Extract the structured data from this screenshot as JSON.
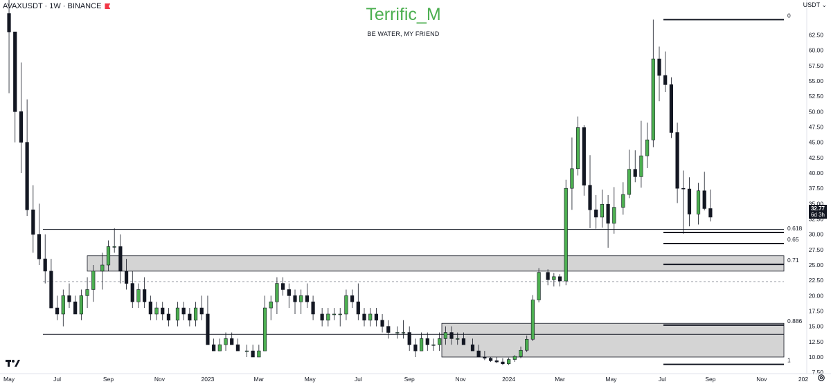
{
  "header": {
    "symbol": "AVAXUSDT · 1W · BINANCE",
    "brand": "Terrific_M",
    "tagline": "BE WATER, MY FRIEND",
    "currency": "USDT ⌄"
  },
  "price_badge": {
    "price": "32.77",
    "countdown": "6d 3h"
  },
  "colors": {
    "up": "#4caf50",
    "down": "#131722",
    "zone": "#d4d4d4",
    "background": "#ffffff"
  },
  "icons": {
    "flag": "red-flag-icon",
    "logo": "tradingview-logo-icon",
    "settings": "gear-icon"
  },
  "chart_data": {
    "type": "candlestick",
    "ylim": [
      7,
      66
    ],
    "y_ticks": [
      "7.50",
      "10.00",
      "12.50",
      "15.00",
      "17.50",
      "20.00",
      "22.50",
      "25.00",
      "27.50",
      "30.00",
      "32.50",
      "35.00",
      "37.50",
      "40.00",
      "42.50",
      "45.00",
      "47.50",
      "50.00",
      "52.50",
      "55.00",
      "57.50",
      "60.00",
      "62.50"
    ],
    "x_ticks": [
      "May",
      "Jul",
      "Sep",
      "Nov",
      "2023",
      "Mar",
      "May",
      "Jul",
      "Sep",
      "Nov",
      "2024",
      "Mar",
      "May",
      "Jul",
      "Sep",
      "Nov",
      "202"
    ],
    "candles": [
      [
        2022.34,
        66,
        72,
        53,
        63
      ],
      [
        2022.36,
        63,
        63,
        45,
        50
      ],
      [
        2022.38,
        50,
        58,
        40,
        45
      ],
      [
        2022.4,
        45,
        52,
        33,
        34
      ],
      [
        2022.42,
        34,
        38,
        27,
        30
      ],
      [
        2022.44,
        30,
        35,
        25,
        26
      ],
      [
        2022.46,
        26,
        30,
        22,
        24
      ],
      [
        2022.48,
        24,
        26,
        18,
        18
      ],
      [
        2022.5,
        18,
        20,
        16,
        17
      ],
      [
        2022.52,
        17,
        21,
        15,
        20
      ],
      [
        2022.54,
        20,
        22,
        18,
        19
      ],
      [
        2022.56,
        19,
        20,
        17,
        17
      ],
      [
        2022.58,
        17,
        21,
        16,
        20
      ],
      [
        2022.6,
        20,
        23,
        18,
        21
      ],
      [
        2022.62,
        21,
        25,
        19,
        24
      ],
      [
        2022.65,
        24,
        27,
        21,
        25
      ],
      [
        2022.67,
        25,
        29,
        24,
        28
      ],
      [
        2022.69,
        28,
        31,
        27,
        28
      ],
      [
        2022.71,
        28,
        30,
        22,
        24
      ],
      [
        2022.73,
        24,
        26,
        21,
        22
      ],
      [
        2022.75,
        22,
        24,
        18,
        19
      ],
      [
        2022.77,
        19,
        22,
        18,
        21
      ],
      [
        2022.79,
        21,
        23,
        18,
        19
      ],
      [
        2022.81,
        19,
        20,
        16,
        17
      ],
      [
        2022.83,
        17,
        19,
        16,
        18
      ],
      [
        2022.85,
        18,
        19,
        16,
        17
      ],
      [
        2022.87,
        17,
        18,
        15,
        16
      ],
      [
        2022.9,
        16,
        19,
        15,
        18
      ],
      [
        2022.92,
        18,
        19,
        16,
        17
      ],
      [
        2022.94,
        17,
        18,
        15,
        16
      ],
      [
        2022.96,
        16,
        19,
        15,
        18
      ],
      [
        2022.98,
        18,
        20,
        16,
        17
      ],
      [
        2023.0,
        17,
        20,
        12,
        12
      ],
      [
        2023.02,
        12,
        13,
        11,
        11
      ],
      [
        2023.04,
        11,
        13,
        11,
        12
      ],
      [
        2023.06,
        12,
        14,
        11,
        13
      ],
      [
        2023.08,
        13,
        14,
        12,
        12
      ],
      [
        2023.1,
        12,
        13,
        11,
        11
      ],
      [
        2023.13,
        11,
        12,
        10,
        11
      ],
      [
        2023.15,
        11,
        12,
        10,
        10
      ],
      [
        2023.17,
        10,
        12,
        10,
        11
      ],
      [
        2023.19,
        11,
        20,
        11,
        18
      ],
      [
        2023.21,
        18,
        20,
        16,
        19
      ],
      [
        2023.23,
        19,
        23,
        17,
        22
      ],
      [
        2023.25,
        22,
        23,
        20,
        21
      ],
      [
        2023.27,
        21,
        22,
        18,
        20
      ],
      [
        2023.29,
        20,
        21,
        17,
        19
      ],
      [
        2023.31,
        19,
        21,
        17,
        20
      ],
      [
        2023.33,
        20,
        22,
        18,
        19
      ],
      [
        2023.35,
        19,
        20,
        16,
        17
      ],
      [
        2023.38,
        17,
        18,
        15,
        16
      ],
      [
        2023.4,
        16,
        18,
        15,
        17
      ],
      [
        2023.42,
        17,
        18,
        16,
        17
      ],
      [
        2023.44,
        17,
        18,
        15,
        17
      ],
      [
        2023.46,
        17,
        21,
        16,
        20
      ],
      [
        2023.48,
        20,
        21,
        18,
        19
      ],
      [
        2023.5,
        19,
        22,
        16,
        17
      ],
      [
        2023.52,
        17,
        18,
        15,
        16
      ],
      [
        2023.54,
        16,
        18,
        15,
        17
      ],
      [
        2023.56,
        17,
        18,
        15,
        16
      ],
      [
        2023.58,
        16,
        17,
        14,
        15
      ],
      [
        2023.6,
        15,
        16,
        13,
        14
      ],
      [
        2023.63,
        14,
        15,
        13,
        14
      ],
      [
        2023.65,
        14,
        16,
        13,
        14
      ],
      [
        2023.67,
        14,
        15,
        11,
        12
      ],
      [
        2023.69,
        12,
        13,
        10,
        11
      ],
      [
        2023.71,
        11,
        14,
        11,
        13
      ],
      [
        2023.73,
        13,
        14,
        11,
        12
      ],
      [
        2023.75,
        12,
        13,
        11,
        12
      ],
      [
        2023.77,
        12,
        14,
        11,
        13
      ],
      [
        2023.79,
        13,
        15,
        12,
        14
      ],
      [
        2023.81,
        14,
        15,
        12,
        13
      ],
      [
        2023.83,
        13,
        14,
        12,
        13
      ],
      [
        2023.85,
        13,
        14,
        12,
        12
      ],
      [
        2023.88,
        12,
        13,
        11,
        11
      ],
      [
        2023.9,
        11,
        12,
        10,
        10
      ],
      [
        2023.92,
        10,
        11,
        9.5,
        9.8
      ],
      [
        2023.94,
        9.8,
        10,
        9.2,
        9.4
      ],
      [
        2023.96,
        9.4,
        10,
        9,
        9.2
      ],
      [
        2023.98,
        9.2,
        9.8,
        8.7,
        8.9
      ],
      [
        2024.0,
        8.9,
        9.9,
        8.7,
        9.6
      ],
      [
        2024.02,
        9.6,
        10.3,
        9.2,
        10.1
      ],
      [
        2024.04,
        10.1,
        11.7,
        9.8,
        11.1
      ],
      [
        2024.06,
        11.1,
        13.5,
        10.8,
        12.9
      ],
      [
        2024.08,
        12.9,
        20.1,
        12.6,
        19.3
      ],
      [
        2024.1,
        19.3,
        24.5,
        18.9,
        23.8
      ],
      [
        2024.13,
        23.8,
        24.3,
        21.7,
        22.6
      ],
      [
        2024.15,
        22.6,
        23.7,
        21.5,
        23.1
      ],
      [
        2024.17,
        23.1,
        23.5,
        21.5,
        22.4
      ],
      [
        2024.19,
        22.4,
        38.9,
        21.7,
        37.5
      ],
      [
        2024.21,
        37.5,
        45.8,
        34,
        40.7
      ],
      [
        2024.23,
        40.7,
        49.2,
        39.6,
        47.4
      ],
      [
        2024.25,
        47.4,
        47.8,
        36.3,
        38
      ],
      [
        2024.27,
        38,
        42.9,
        31,
        34
      ],
      [
        2024.29,
        34,
        36.4,
        30.9,
        32.8
      ],
      [
        2024.31,
        32.8,
        37.3,
        31.1,
        34.9
      ],
      [
        2024.33,
        34.9,
        36.4,
        27.8,
        31.8
      ],
      [
        2024.35,
        31.8,
        37.7,
        30.1,
        34.4
      ],
      [
        2024.38,
        34.4,
        38.5,
        33.2,
        36.5
      ],
      [
        2024.4,
        36.5,
        43.8,
        35.9,
        40.6
      ],
      [
        2024.42,
        40.6,
        43.7,
        38.5,
        39.4
      ],
      [
        2024.44,
        39.4,
        48.5,
        37.6,
        42.8
      ],
      [
        2024.46,
        42.8,
        48.2,
        40.8,
        45.4
      ],
      [
        2024.48,
        45.4,
        65,
        44.2,
        58.6
      ],
      [
        2024.5,
        58.6,
        60.6,
        51.7,
        55.9
      ],
      [
        2024.52,
        55.9,
        59.8,
        53.2,
        54.4
      ],
      [
        2024.54,
        54.4,
        55.6,
        45.7,
        46.6
      ],
      [
        2024.56,
        46.6,
        48.2,
        35.1,
        37.5
      ],
      [
        2024.58,
        37.5,
        40.4,
        30.1,
        37.4
      ],
      [
        2024.6,
        37.4,
        39.3,
        31.3,
        33.3
      ],
      [
        2024.63,
        33.3,
        38.4,
        31.6,
        37.1
      ],
      [
        2024.65,
        37.1,
        40.2,
        33.9,
        34.2
      ],
      [
        2024.67,
        34.2,
        37.3,
        32.1,
        32.8
      ]
    ],
    "fib_levels": [
      {
        "label": "0",
        "price": 65.0
      },
      {
        "label": "0.618",
        "price": 30.3
      },
      {
        "label": "0.65",
        "price": 28.5
      },
      {
        "label": "0.71",
        "price": 25.1
      },
      {
        "label": "0.886",
        "price": 15.2
      },
      {
        "label": "1",
        "price": 8.8
      }
    ],
    "zones": [
      [
        24.0,
        26.5
      ],
      [
        10.0,
        15.5
      ]
    ],
    "horizontal_lines": [
      30.8,
      13.7
    ],
    "dashed_line": 22.3
  }
}
